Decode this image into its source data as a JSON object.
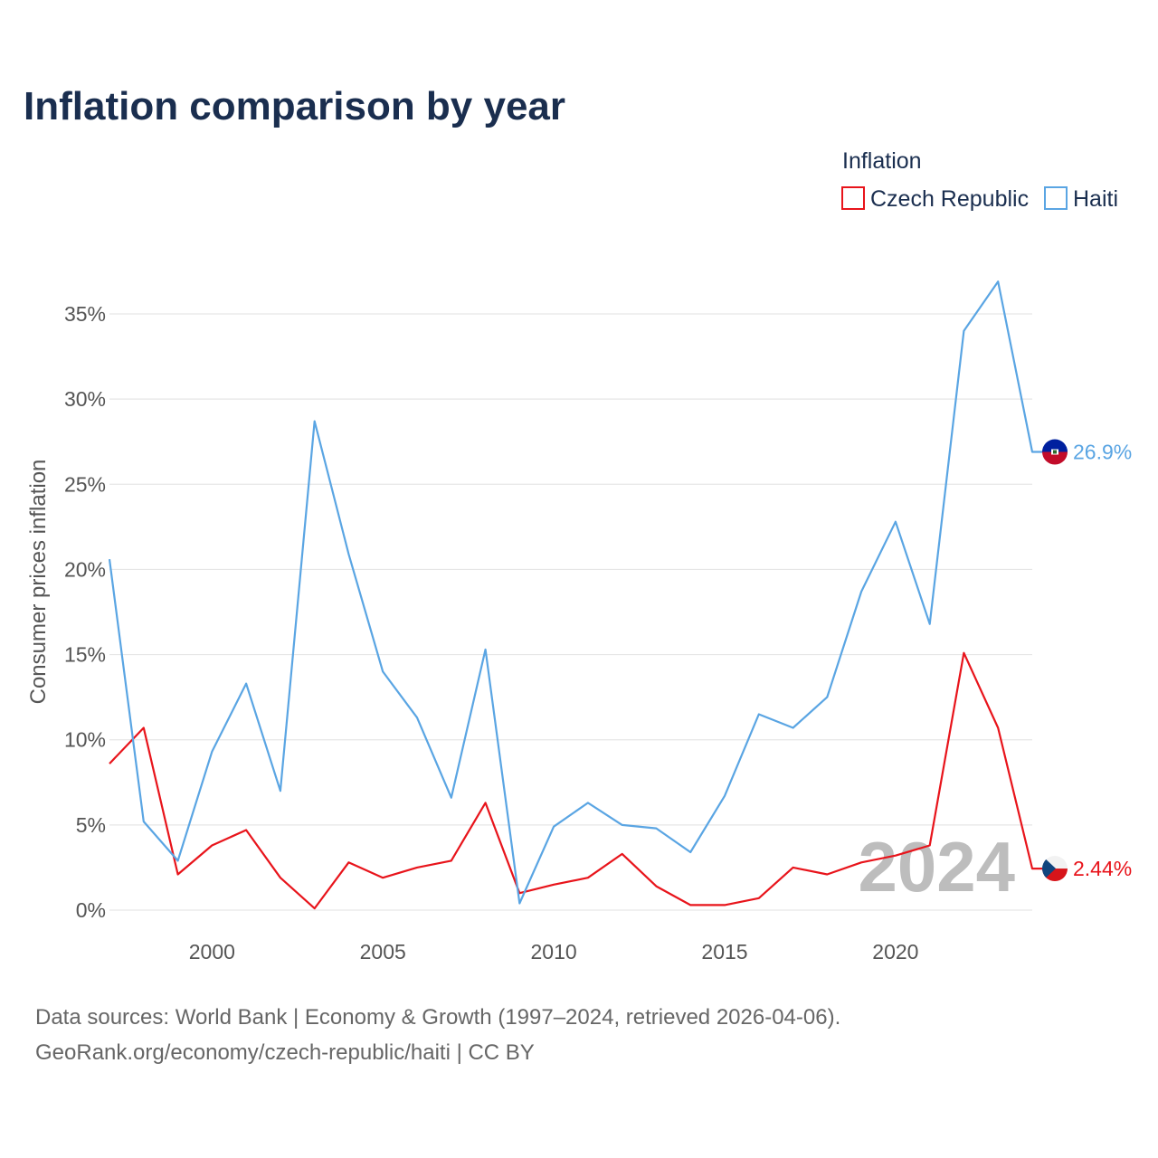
{
  "chart_data": {
    "type": "line",
    "title": "Inflation comparison by year",
    "ylabel": "Consumer prices inflation",
    "xlabel": "",
    "legend_title": "Inflation",
    "legend_position": "top-right",
    "x": [
      1997,
      1998,
      1999,
      2000,
      2001,
      2002,
      2003,
      2004,
      2005,
      2006,
      2007,
      2008,
      2009,
      2010,
      2011,
      2012,
      2013,
      2014,
      2015,
      2016,
      2017,
      2018,
      2019,
      2020,
      2021,
      2022,
      2023,
      2024
    ],
    "xlim": [
      1997,
      2024
    ],
    "ylim": [
      0,
      37
    ],
    "x_ticks": [
      2000,
      2005,
      2010,
      2015,
      2020
    ],
    "x_tick_labels": [
      "2000",
      "2005",
      "2010",
      "2015",
      "2020"
    ],
    "y_ticks": [
      0,
      5,
      10,
      15,
      20,
      25,
      30,
      35
    ],
    "y_tick_labels": [
      "0%",
      "5%",
      "10%",
      "15%",
      "20%",
      "25%",
      "30%",
      "35%"
    ],
    "grid": true,
    "year_watermark": "2024",
    "series": [
      {
        "name": "Czech Republic",
        "color": "#e8141b",
        "flag": "czech-flag",
        "end_label": "2.44%",
        "values": [
          8.6,
          10.7,
          2.1,
          3.8,
          4.7,
          1.9,
          0.1,
          2.8,
          1.9,
          2.5,
          2.9,
          6.3,
          1.0,
          1.5,
          1.9,
          3.3,
          1.4,
          0.3,
          0.3,
          0.7,
          2.5,
          2.1,
          2.8,
          3.2,
          3.8,
          15.1,
          10.7,
          2.44
        ]
      },
      {
        "name": "Haiti",
        "color": "#5aa5e3",
        "flag": "haiti-flag",
        "end_label": "26.9%",
        "values": [
          20.6,
          5.2,
          2.9,
          9.3,
          13.3,
          7.0,
          28.7,
          20.9,
          14.0,
          11.3,
          6.6,
          15.3,
          0.4,
          4.9,
          6.3,
          5.0,
          4.8,
          3.4,
          6.7,
          11.5,
          10.7,
          12.5,
          18.7,
          22.8,
          16.8,
          34.0,
          36.9,
          26.9
        ]
      }
    ]
  },
  "source": {
    "line1": "Data sources: World Bank | Economy & Growth (1997–2024, retrieved 2026-04-06).",
    "line2": "GeoRank.org/economy/czech-republic/haiti | CC BY"
  }
}
